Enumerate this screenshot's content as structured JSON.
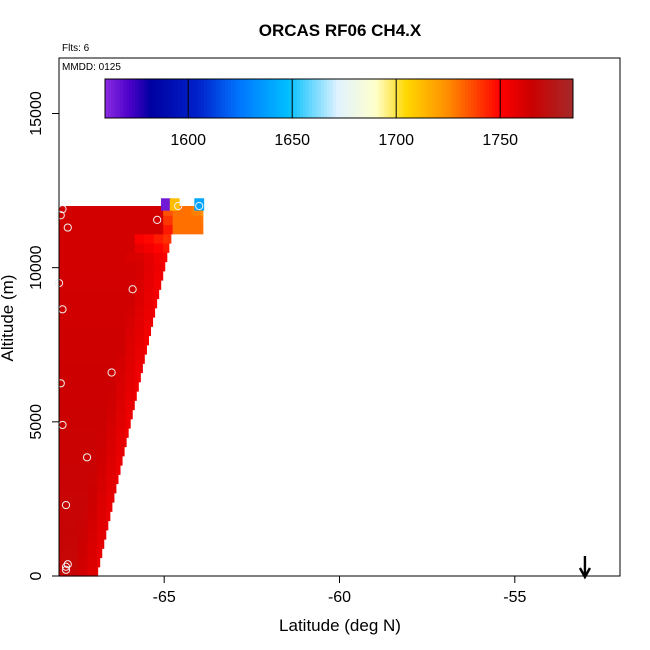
{
  "chart_data": {
    "type": "heatmap",
    "title": "ORCAS RF06 CH4.X",
    "flights_label": "Flts: 6",
    "mmdd_label": "MMDD: 0125",
    "xlabel": "Latitude (deg N)",
    "ylabel": "Altitude (m)",
    "xlim": [
      -68.0,
      -52.0
    ],
    "ylim": [
      0,
      16800
    ],
    "x_ticks": [
      -65,
      -60,
      -55
    ],
    "x_tick_labels": [
      "-65",
      "-60",
      "-55"
    ],
    "y_ticks": [
      0,
      5000,
      10000,
      15000
    ],
    "y_tick_labels": [
      "0",
      "5000",
      "10000",
      "15000"
    ],
    "colorbar": {
      "range": [
        1560,
        1785
      ],
      "ticks": [
        1600,
        1650,
        1700,
        1750
      ],
      "tick_labels": [
        "1600",
        "1650",
        "1700",
        "1750"
      ],
      "stops": [
        {
          "value": 1560,
          "color": "#8a2be2"
        },
        {
          "value": 1572,
          "color": "#4b00c8"
        },
        {
          "value": 1582,
          "color": "#0000a0"
        },
        {
          "value": 1605,
          "color": "#0022cc"
        },
        {
          "value": 1625,
          "color": "#0077ff"
        },
        {
          "value": 1648,
          "color": "#00bfff"
        },
        {
          "value": 1672,
          "color": "#e0f2ff"
        },
        {
          "value": 1690,
          "color": "#ffffcc"
        },
        {
          "value": 1705,
          "color": "#ffd700"
        },
        {
          "value": 1725,
          "color": "#ff8c00"
        },
        {
          "value": 1750,
          "color": "#ff0000"
        },
        {
          "value": 1765,
          "color": "#cc0000"
        },
        {
          "value": 1785,
          "color": "#a52a2a"
        }
      ]
    },
    "curtain": {
      "lat_west": -68.0,
      "col_width_deg": 0.27,
      "row_height_m": 300,
      "edge_lat_at_bottom": -66.9,
      "edge_lat_at_top": -64.6,
      "top_altitude_m": 11900,
      "east_shelf_lat": -63.9,
      "east_shelf_bottom_m": 11000
    },
    "top_patches": [
      {
        "lat": -64.95,
        "alt": 12050,
        "value": 1565
      },
      {
        "lat": -64.7,
        "alt": 12050,
        "value": 1712
      },
      {
        "lat": -64.0,
        "alt": 12050,
        "value": 1640
      }
    ],
    "samples": [
      {
        "lat": -67.9,
        "alt": 11900
      },
      {
        "lat": -67.75,
        "alt": 11300
      },
      {
        "lat": -67.95,
        "alt": 11700
      },
      {
        "lat": -67.9,
        "alt": 8650
      },
      {
        "lat": -67.95,
        "alt": 6250
      },
      {
        "lat": -67.9,
        "alt": 4900
      },
      {
        "lat": -67.2,
        "alt": 3850
      },
      {
        "lat": -66.5,
        "alt": 6600
      },
      {
        "lat": -65.9,
        "alt": 9300
      },
      {
        "lat": -65.2,
        "alt": 11550
      },
      {
        "lat": -64.6,
        "alt": 12000
      },
      {
        "lat": -64.0,
        "alt": 12000
      },
      {
        "lat": -67.8,
        "alt": 2300
      },
      {
        "lat": -67.8,
        "alt": 300
      },
      {
        "lat": -67.8,
        "alt": 200
      },
      {
        "lat": -67.75,
        "alt": 380
      },
      {
        "lat": -68.0,
        "alt": 9500
      }
    ],
    "arrow": {
      "lat": -53.0,
      "direction": "down"
    }
  }
}
